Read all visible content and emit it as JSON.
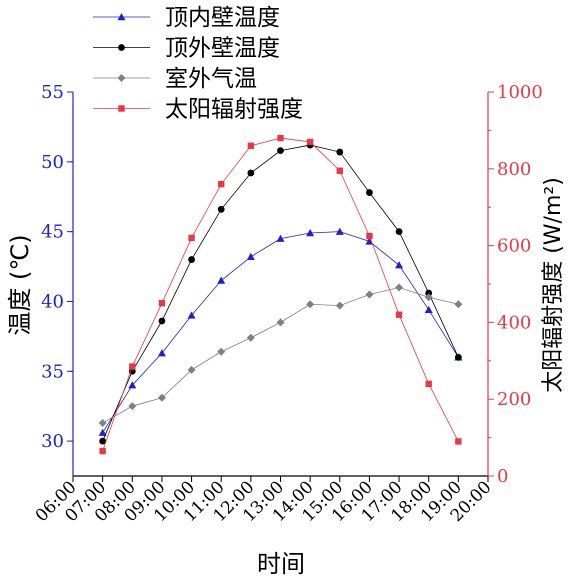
{
  "chart_data": {
    "type": "line",
    "title": "",
    "xlabel": "时间",
    "ylabel_left": "温度 (℃)",
    "ylabel_right": "太阳辐射强度 (W/m²)",
    "x_ticks": [
      "06:00",
      "07:00",
      "08:00",
      "09:00",
      "10:00",
      "11:00",
      "12:00",
      "13:00",
      "14:00",
      "15:00",
      "16:00",
      "17:00",
      "18:00",
      "19:00",
      "20:00"
    ],
    "x_range": [
      6,
      20
    ],
    "ylim_left": [
      27.5,
      55
    ],
    "ylim_right": [
      0,
      1000
    ],
    "y_ticks_left": [
      "30",
      "35",
      "40",
      "45",
      "50",
      "55"
    ],
    "y_ticks_right": [
      "0",
      "200",
      "400",
      "600",
      "800",
      "1000"
    ],
    "left_axis_color": "#2222cc",
    "right_axis_color": "#e63946",
    "legend_position": "top-left",
    "grid": false,
    "series": [
      {
        "name": "顶内壁温度",
        "axis": "left",
        "color": "#1f1fd0",
        "marker": "triangle",
        "x": [
          7,
          8,
          9,
          10,
          11,
          12,
          13,
          14,
          15,
          16,
          17,
          18,
          19
        ],
        "values": [
          30.6,
          34.0,
          36.3,
          39.0,
          41.5,
          43.2,
          44.5,
          44.9,
          45.0,
          44.3,
          42.6,
          39.4,
          36.0
        ]
      },
      {
        "name": "顶外壁温度",
        "axis": "left",
        "color": "#000000",
        "marker": "circle",
        "x": [
          7,
          8,
          9,
          10,
          11,
          12,
          13,
          14,
          15,
          16,
          17,
          18,
          19
        ],
        "values": [
          30.0,
          35.0,
          38.6,
          43.0,
          46.6,
          49.2,
          50.8,
          51.2,
          50.7,
          47.8,
          45.0,
          40.6,
          36.0
        ]
      },
      {
        "name": "室外气温",
        "axis": "left",
        "color": "#808080",
        "marker": "diamond",
        "x": [
          7,
          8,
          9,
          10,
          11,
          12,
          13,
          14,
          15,
          16,
          17,
          18,
          19
        ],
        "values": [
          31.3,
          32.5,
          33.1,
          35.1,
          36.4,
          37.4,
          38.5,
          39.8,
          39.7,
          40.5,
          41.0,
          40.3,
          39.8
        ]
      },
      {
        "name": "太阳辐射强度",
        "axis": "right",
        "color": "#e63946",
        "marker": "square",
        "x": [
          7,
          8,
          9,
          10,
          11,
          12,
          13,
          14,
          15,
          16,
          17,
          18,
          19
        ],
        "values": [
          65,
          285,
          450,
          620,
          760,
          860,
          880,
          870,
          795,
          625,
          420,
          240,
          90
        ]
      }
    ]
  }
}
